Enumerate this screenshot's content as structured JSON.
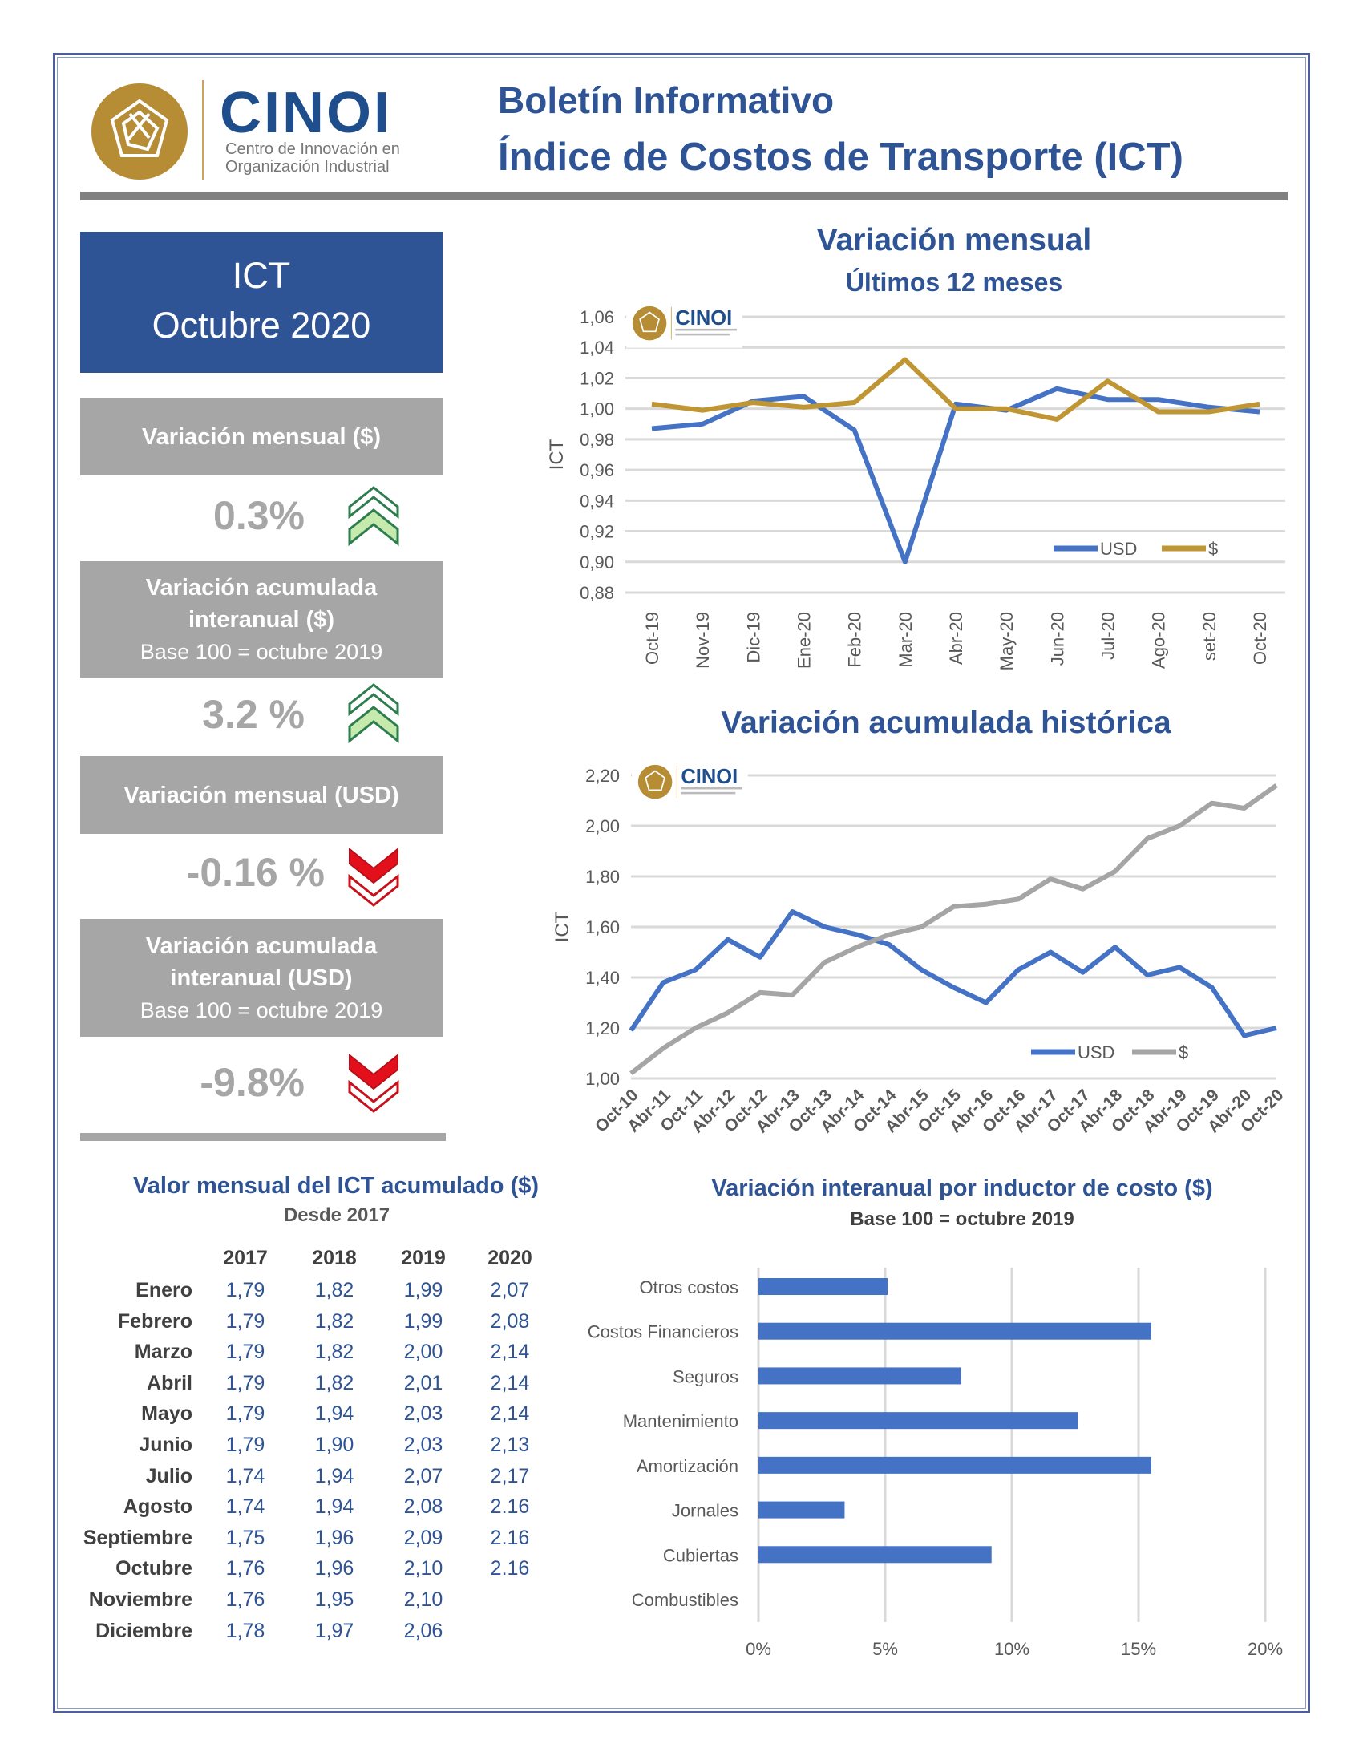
{
  "header": {
    "logo_text": "CINOI",
    "logo_subtitle_1": "Centro de Innovación en",
    "logo_subtitle_2": "Organización Industrial",
    "title_line1": "Boletín Informativo",
    "title_line2": "Índice de Costos de Transporte (ICT)"
  },
  "summary": {
    "ict_label": "ICT",
    "period": "Octubre 2020",
    "cards": [
      {
        "title": "Variación mensual ($)",
        "base": "",
        "value": "0.3%",
        "trend": "up"
      },
      {
        "title": "Variación acumulada interanual ($)",
        "base": "Base 100 = octubre 2019",
        "value": "3.2 %",
        "trend": "up"
      },
      {
        "title": "Variación mensual (USD)",
        "base": "",
        "value": "-0.16 %",
        "trend": "down"
      },
      {
        "title": "Variación acumulada interanual (USD)",
        "base": "Base 100 = octubre 2019",
        "value": "-9.8%",
        "trend": "down"
      }
    ],
    "colors": {
      "up": "#2E7D4F",
      "up_fill": "#C6E9AE",
      "down": "#E3101B"
    }
  },
  "table": {
    "title": "Valor mensual del ICT acumulado ($)",
    "subtitle": "Desde 2017",
    "years": [
      "2017",
      "2018",
      "2019",
      "2020"
    ],
    "rows": [
      {
        "month": "Enero",
        "values": [
          "1,79",
          "1,82",
          "1,99",
          "2,07"
        ]
      },
      {
        "month": "Febrero",
        "values": [
          "1,79",
          "1,82",
          "1,99",
          "2,08"
        ]
      },
      {
        "month": "Marzo",
        "values": [
          "1,79",
          "1,82",
          "2,00",
          "2,14"
        ]
      },
      {
        "month": "Abril",
        "values": [
          "1,79",
          "1,82",
          "2,01",
          "2,14"
        ]
      },
      {
        "month": "Mayo",
        "values": [
          "1,79",
          "1,94",
          "2,03",
          "2,14"
        ]
      },
      {
        "month": "Junio",
        "values": [
          "1,79",
          "1,90",
          "2,03",
          "2,13"
        ]
      },
      {
        "month": "Julio",
        "values": [
          "1,74",
          "1,94",
          "2,07",
          "2,17"
        ]
      },
      {
        "month": "Agosto",
        "values": [
          "1,74",
          "1,94",
          "2,08",
          "2.16"
        ]
      },
      {
        "month": "Septiembre",
        "values": [
          "1,75",
          "1,96",
          "2,09",
          "2.16"
        ]
      },
      {
        "month": "Octubre",
        "values": [
          "1,76",
          "1,96",
          "2,10",
          "2.16"
        ]
      },
      {
        "month": "Noviembre",
        "values": [
          "1,76",
          "1,95",
          "2,10",
          ""
        ]
      },
      {
        "month": "Diciembre",
        "values": [
          "1,78",
          "1,97",
          "2,06",
          ""
        ]
      }
    ]
  },
  "chart_data": [
    {
      "type": "line",
      "title": "Variación mensual",
      "subtitle": "Últimos 12 meses",
      "ylabel": "ICT",
      "ylim": [
        0.88,
        1.06
      ],
      "yticks": [
        "0,88",
        "0,90",
        "0,92",
        "0,94",
        "0,96",
        "0,98",
        "1,00",
        "1,02",
        "1,04",
        "1,06"
      ],
      "categories": [
        "Oct-19",
        "Nov-19",
        "Dic-19",
        "Ene-20",
        "Feb-20",
        "Mar-20",
        "Abr-20",
        "May-20",
        "Jun-20",
        "Jul-20",
        "Ago-20",
        "set-20",
        "Oct-20"
      ],
      "grid": true,
      "legend": "bottom-right",
      "series": [
        {
          "name": "USD",
          "color": "#4472C4",
          "values": [
            0.987,
            0.99,
            1.005,
            1.008,
            0.986,
            0.9,
            1.003,
            0.999,
            1.013,
            1.006,
            1.006,
            1.001,
            0.998
          ]
        },
        {
          "name": "$",
          "color": "#BF9633",
          "values": [
            1.003,
            0.999,
            1.004,
            1.001,
            1.004,
            1.032,
            1.0,
            1.0,
            0.993,
            1.018,
            0.998,
            0.998,
            1.003
          ]
        }
      ]
    },
    {
      "type": "line",
      "title": "Variación acumulada histórica",
      "ylabel": "ICT",
      "ylim": [
        1.0,
        2.2
      ],
      "yticks": [
        "1,00",
        "1,20",
        "1,40",
        "1,60",
        "1,80",
        "2,00",
        "2,20"
      ],
      "categories": [
        "Oct-10",
        "Abr-11",
        "Oct-11",
        "Abr-12",
        "Oct-12",
        "Abr-13",
        "Oct-13",
        "Abr-14",
        "Oct-14",
        "Abr-15",
        "Oct-15",
        "Abr-16",
        "Oct-16",
        "Abr-17",
        "Oct-17",
        "Abr-18",
        "Oct-18",
        "Abr-19",
        "Oct-19",
        "Abr-20",
        "Oct-20"
      ],
      "grid": true,
      "legend": "bottom-right",
      "series": [
        {
          "name": "USD",
          "color": "#4472C4",
          "values": [
            1.19,
            1.38,
            1.43,
            1.55,
            1.48,
            1.66,
            1.6,
            1.57,
            1.53,
            1.43,
            1.36,
            1.3,
            1.43,
            1.5,
            1.42,
            1.52,
            1.41,
            1.44,
            1.36,
            1.17,
            1.2
          ]
        },
        {
          "name": "$",
          "color": "#A5A5A5",
          "values": [
            1.02,
            1.12,
            1.2,
            1.26,
            1.34,
            1.33,
            1.46,
            1.52,
            1.57,
            1.6,
            1.68,
            1.69,
            1.71,
            1.79,
            1.75,
            1.82,
            1.95,
            2.0,
            2.09,
            2.07,
            2.16
          ]
        }
      ]
    },
    {
      "type": "bar",
      "orientation": "horizontal",
      "title": "Variación interanual por inductor de costo ($)",
      "subtitle": "Base 100 = octubre 2019",
      "categories": [
        "Otros costos",
        "Costos Financieros",
        "Seguros",
        "Mantenimiento",
        "Amortización",
        "Jornales",
        "Cubiertas",
        "Combustibles"
      ],
      "values": [
        5.1,
        15.5,
        8.0,
        12.6,
        15.5,
        3.4,
        9.2,
        0
      ],
      "xlim": [
        0,
        20
      ],
      "xticks": [
        "0%",
        "5%",
        "10%",
        "15%",
        "20%"
      ],
      "grid": true,
      "color": "#4472C4"
    }
  ]
}
